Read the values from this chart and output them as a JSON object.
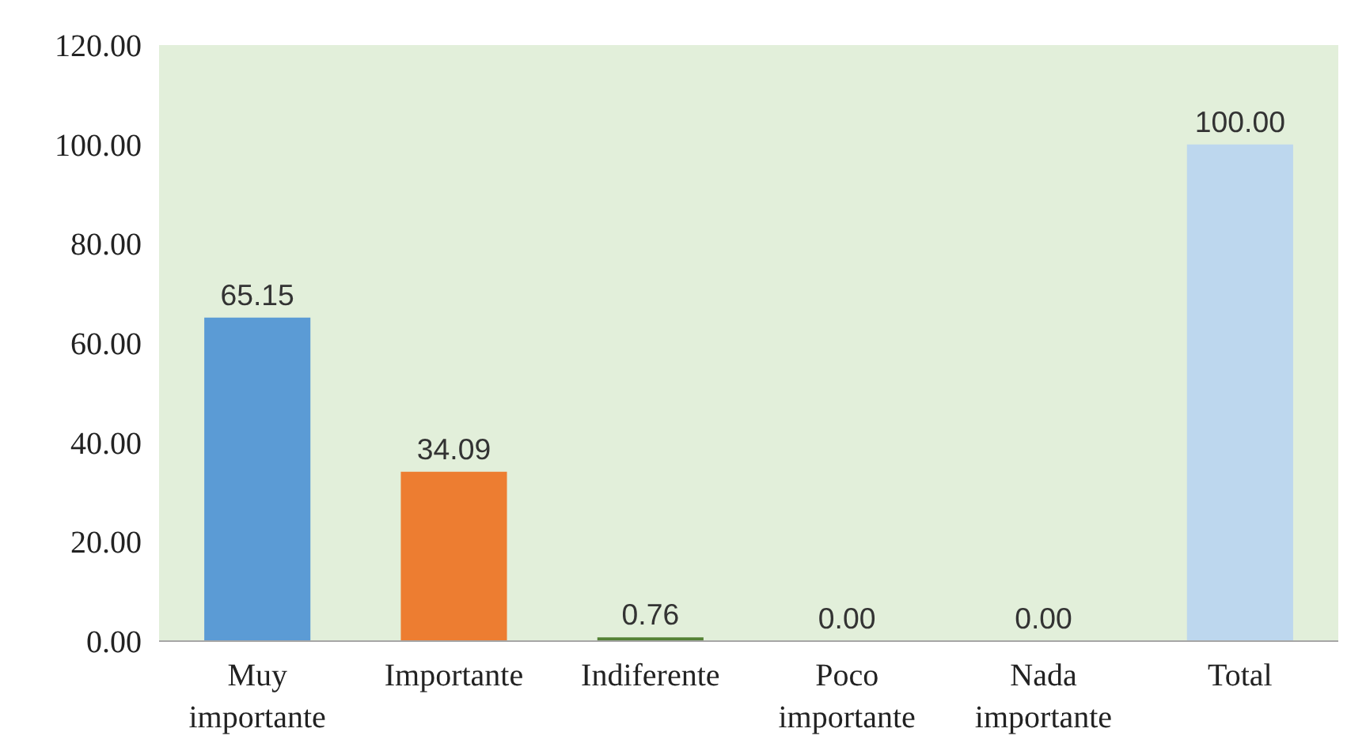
{
  "chart_data": {
    "type": "bar",
    "categories": [
      "Muy importante",
      "Importante",
      "Indiferente",
      "Poco importante",
      "Nada importante",
      "Total"
    ],
    "values": [
      65.15,
      34.09,
      0.76,
      0,
      0,
      100
    ],
    "colors": [
      "#5b9bd5",
      "#ed7d31",
      "#548235",
      "#a5a5a5",
      "#ffc000",
      "#bdd7ee"
    ],
    "value_labels": [
      "65.15",
      "34.09",
      "0.76",
      "0.00",
      "0.00",
      "100.00"
    ],
    "ylim": [
      0,
      120
    ],
    "yticks": [
      {
        "value": 0,
        "label": "0.00"
      },
      {
        "value": 20,
        "label": "20.00"
      },
      {
        "value": 40,
        "label": "40.00"
      },
      {
        "value": 60,
        "label": "60.00"
      },
      {
        "value": 80,
        "label": "80.00"
      },
      {
        "value": 100,
        "label": "100.00"
      },
      {
        "value": 120,
        "label": "120.00"
      }
    ],
    "grid": false
  }
}
